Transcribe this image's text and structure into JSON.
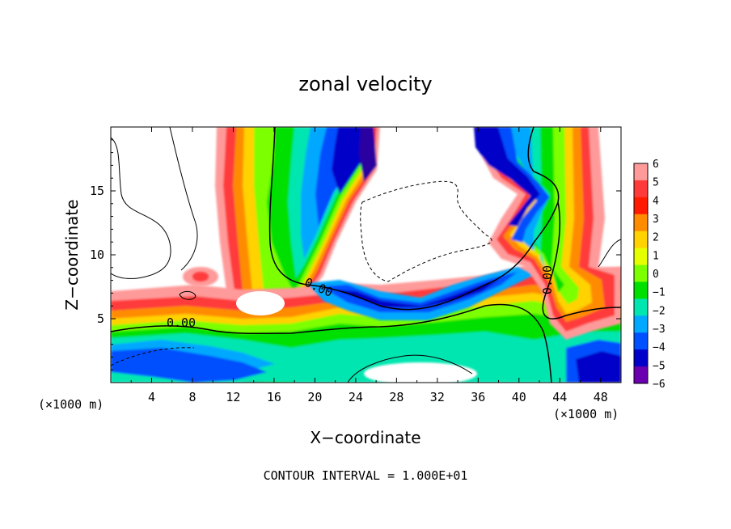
{
  "chart_data": {
    "type": "heatmap",
    "title": "zonal velocity",
    "xlabel": "X−coordinate",
    "ylabel": "Z−coordinate",
    "x_unit": "(×1000 m)",
    "x_unit_right": "(×1000 m)",
    "xlim": [
      0,
      50
    ],
    "ylim": [
      0,
      20
    ],
    "x_ticks": [
      4,
      8,
      12,
      16,
      20,
      24,
      28,
      32,
      36,
      40,
      44,
      48
    ],
    "y_ticks": [
      5,
      10,
      15
    ],
    "contour_labels": [
      "0.00",
      "0.00",
      "0.00"
    ],
    "footer": "CONTOUR INTERVAL = 1.000E+01",
    "colorbar": {
      "levels": [
        6,
        5,
        4,
        3,
        2,
        1,
        0,
        -1,
        -2,
        -3,
        -4,
        -5,
        -6
      ],
      "labels": [
        "6",
        "5",
        "4",
        "3",
        "2",
        "1",
        "0",
        "−1",
        "−2",
        "−3",
        "−4",
        "−5",
        "−6"
      ],
      "colors": [
        "#ff9a9a",
        "#ff3a3a",
        "#ff1a00",
        "#ff8c00",
        "#ffd200",
        "#e6ff00",
        "#7cff00",
        "#00e000",
        "#00e6b0",
        "#00a8ff",
        "#0050ff",
        "#0000c8",
        "#6a00b0"
      ]
    }
  }
}
